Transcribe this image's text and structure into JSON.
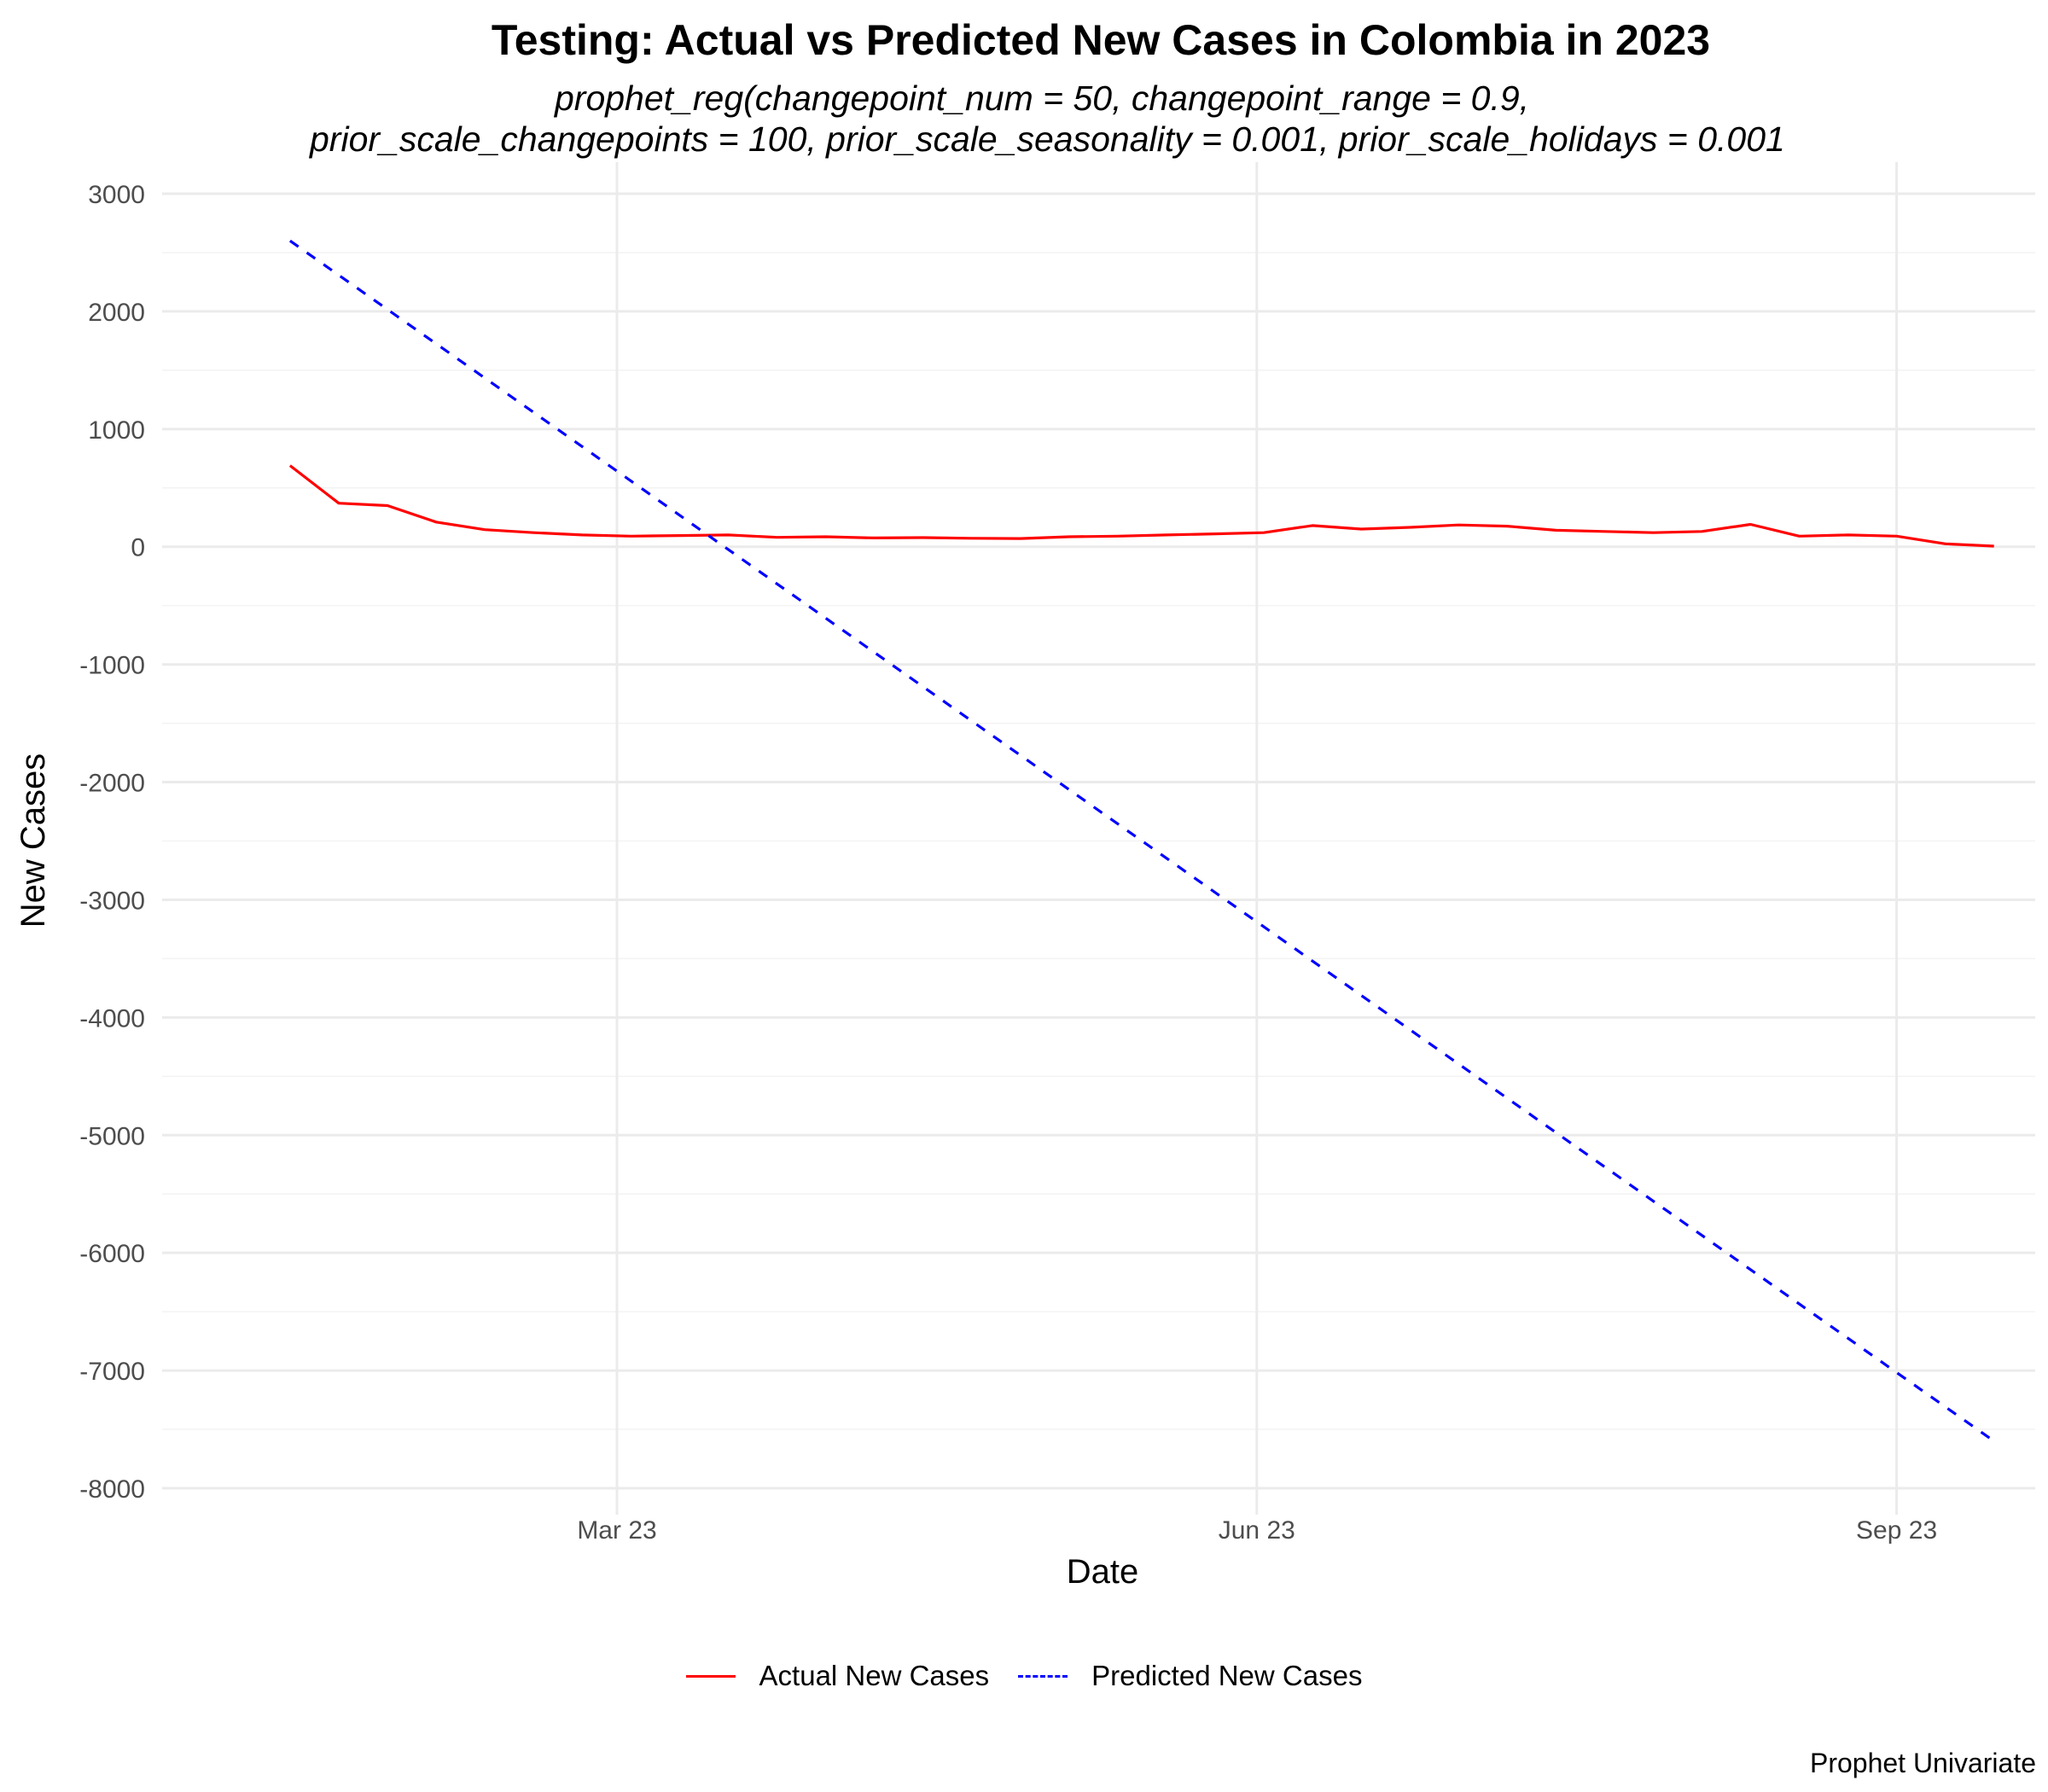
{
  "chart_data": {
    "type": "line",
    "title": "Testing: Actual vs Predicted New Cases in Colombia in 2023",
    "subtitle_line1": "prophet_reg(changepoint_num = 50, changepoint_range = 0.9,",
    "subtitle_line2": "prior_scale_changepoints = 100, prior_scale_seasonality = 0.001, prior_scale_holidays = 0.001",
    "xlabel": "Date",
    "ylabel": "New Cases",
    "caption": "Prophet Univariate",
    "x_ticks": [
      {
        "date": "2023-03-01",
        "label": "Mar 23"
      },
      {
        "date": "2023-06-01",
        "label": "Jun 23"
      },
      {
        "date": "2023-09-01",
        "label": "Sep 23"
      }
    ],
    "y_ticks": [
      3000,
      2000,
      1000,
      0,
      -1000,
      -2000,
      -3000,
      -4000,
      -5000,
      -6000,
      -7000,
      -8000
    ],
    "xlim": [
      "2023-01-01",
      "2023-10-01"
    ],
    "ylim": [
      -8000,
      3000
    ],
    "grid": true,
    "legend_position": "bottom",
    "series": [
      {
        "name": "Actual New Cases",
        "color": "#ff0000",
        "dash": "solid",
        "points": [
          {
            "x": "2023-01-13",
            "y": 690
          },
          {
            "x": "2023-01-20",
            "y": 370
          },
          {
            "x": "2023-01-27",
            "y": 350
          },
          {
            "x": "2023-02-03",
            "y": 210
          },
          {
            "x": "2023-02-10",
            "y": 145
          },
          {
            "x": "2023-02-17",
            "y": 120
          },
          {
            "x": "2023-02-24",
            "y": 100
          },
          {
            "x": "2023-03-03",
            "y": 90
          },
          {
            "x": "2023-03-10",
            "y": 95
          },
          {
            "x": "2023-03-17",
            "y": 100
          },
          {
            "x": "2023-03-24",
            "y": 80
          },
          {
            "x": "2023-03-31",
            "y": 85
          },
          {
            "x": "2023-04-07",
            "y": 75
          },
          {
            "x": "2023-04-14",
            "y": 78
          },
          {
            "x": "2023-04-21",
            "y": 72
          },
          {
            "x": "2023-04-28",
            "y": 70
          },
          {
            "x": "2023-05-05",
            "y": 85
          },
          {
            "x": "2023-05-12",
            "y": 90
          },
          {
            "x": "2023-05-19",
            "y": 100
          },
          {
            "x": "2023-05-26",
            "y": 110
          },
          {
            "x": "2023-06-02",
            "y": 120
          },
          {
            "x": "2023-06-09",
            "y": 180
          },
          {
            "x": "2023-06-16",
            "y": 150
          },
          {
            "x": "2023-06-23",
            "y": 165
          },
          {
            "x": "2023-06-30",
            "y": 185
          },
          {
            "x": "2023-07-07",
            "y": 175
          },
          {
            "x": "2023-07-14",
            "y": 140
          },
          {
            "x": "2023-07-21",
            "y": 130
          },
          {
            "x": "2023-07-28",
            "y": 120
          },
          {
            "x": "2023-08-04",
            "y": 130
          },
          {
            "x": "2023-08-11",
            "y": 190
          },
          {
            "x": "2023-08-18",
            "y": 90
          },
          {
            "x": "2023-08-25",
            "y": 100
          },
          {
            "x": "2023-09-01",
            "y": 90
          },
          {
            "x": "2023-09-08",
            "y": 25
          },
          {
            "x": "2023-09-15",
            "y": 5
          }
        ]
      },
      {
        "name": "Predicted New Cases",
        "color": "#0000ff",
        "dash": "dashed",
        "points": [
          {
            "x": "2023-01-13",
            "y": 2600
          },
          {
            "x": "2023-09-15",
            "y": -7600
          }
        ]
      }
    ]
  }
}
